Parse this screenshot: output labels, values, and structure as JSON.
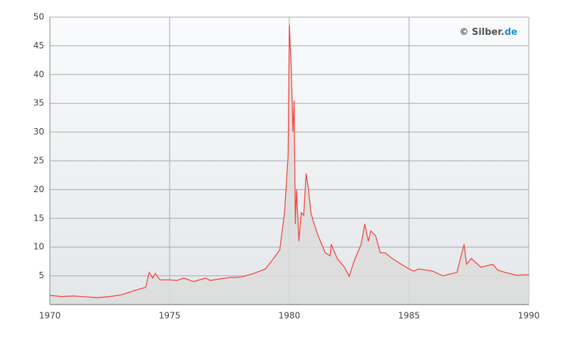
{
  "chart_data": {
    "type": "area-line",
    "watermark": {
      "text": "© Silber.",
      "highlight": "de"
    },
    "xlim": [
      1970,
      1990
    ],
    "xticks": [
      1970,
      1975,
      1980,
      1985,
      1990
    ],
    "ylim": [
      0,
      50
    ],
    "yticks": [
      5,
      10,
      15,
      20,
      25,
      30,
      35,
      40,
      45,
      50
    ],
    "grid": true,
    "line_color": "#ef4a42",
    "area_color": "#dcdcdc",
    "x": [
      1970.0,
      1970.5,
      1971.0,
      1971.5,
      1972.0,
      1972.5,
      1973.0,
      1973.5,
      1974.0,
      1974.15,
      1974.3,
      1974.4,
      1974.6,
      1975.0,
      1975.3,
      1975.6,
      1976.0,
      1976.5,
      1976.7,
      1977.0,
      1977.5,
      1978.0,
      1978.5,
      1979.0,
      1979.3,
      1979.6,
      1979.8,
      1979.95,
      1980.0,
      1980.08,
      1980.15,
      1980.2,
      1980.25,
      1980.3,
      1980.4,
      1980.5,
      1980.6,
      1980.7,
      1980.8,
      1980.9,
      1981.0,
      1981.2,
      1981.5,
      1981.7,
      1981.75,
      1982.0,
      1982.3,
      1982.5,
      1982.7,
      1983.0,
      1983.15,
      1983.3,
      1983.4,
      1983.6,
      1983.8,
      1984.0,
      1984.3,
      1984.6,
      1985.0,
      1985.2,
      1985.4,
      1986.0,
      1986.4,
      1986.8,
      1987.0,
      1987.3,
      1987.4,
      1987.6,
      1988.0,
      1988.5,
      1988.7,
      1989.0,
      1989.5,
      1989.9,
      1990.0
    ],
    "values": [
      1.6,
      1.4,
      1.5,
      1.35,
      1.2,
      1.4,
      1.7,
      2.4,
      3.0,
      5.6,
      4.6,
      5.4,
      4.3,
      4.3,
      4.2,
      4.6,
      4.0,
      4.6,
      4.2,
      4.4,
      4.7,
      4.8,
      5.4,
      6.2,
      7.8,
      9.5,
      16,
      26,
      48.7,
      41,
      30,
      35.5,
      14,
      20,
      11,
      16,
      15.5,
      22.8,
      20,
      16,
      14.5,
      12,
      9,
      8.5,
      10.5,
      8,
      6.5,
      4.9,
      7.5,
      10.5,
      14,
      11,
      12.8,
      12,
      9,
      9,
      8,
      7.2,
      6.2,
      5.8,
      6.2,
      5.8,
      5.0,
      5.4,
      5.6,
      10.5,
      7.0,
      8,
      6.5,
      7.0,
      6.0,
      5.6,
      5.1,
      5.2,
      5.1
    ]
  }
}
